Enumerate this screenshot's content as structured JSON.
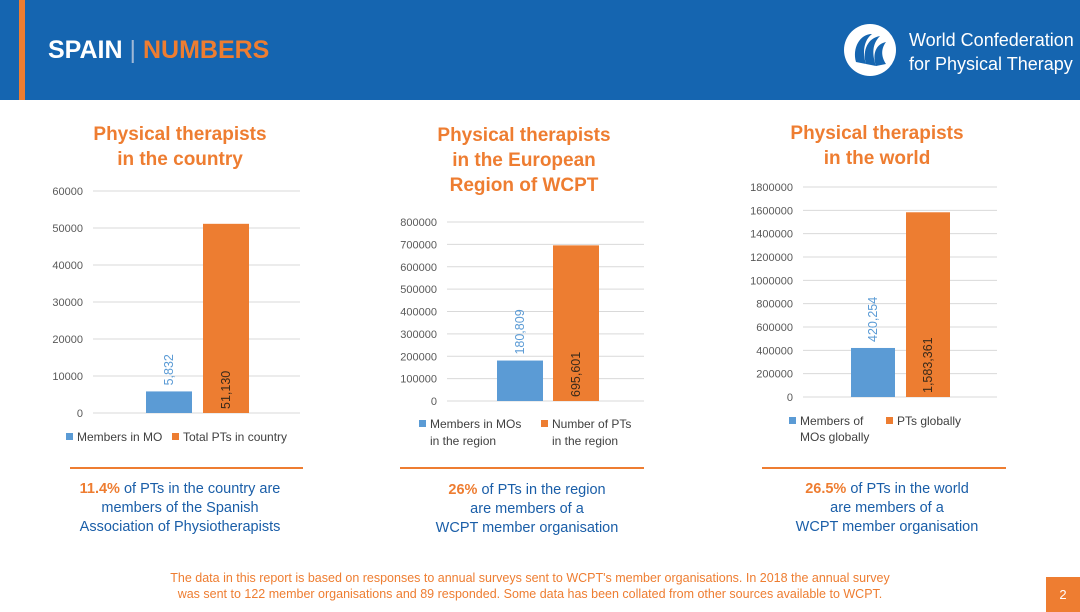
{
  "header": {
    "title_country": "SPAIN",
    "title_separator": "|",
    "title_section": "NUMBERS",
    "org_line1": "World Confederation",
    "org_line2": "for Physical Therapy",
    "logo_icon": "wcpt-logo-icon"
  },
  "charts": [
    {
      "title_line1": "Physical therapists",
      "title_line2": "in the country",
      "title_line3": "",
      "summary_pct": "11.4%",
      "summary_rest1": " of PTs in the country are",
      "summary_line2": "members of the Spanish",
      "summary_line3": "Association of Physiotherapists"
    },
    {
      "title_line1": "Physical therapists",
      "title_line2": "in the European",
      "title_line3": "Region of WCPT",
      "summary_pct": "26%",
      "summary_rest1": " of PTs in the region",
      "summary_line2": "are members of a",
      "summary_line3": "WCPT member organisation"
    },
    {
      "title_line1": "Physical therapists",
      "title_line2": "in the world",
      "title_line3": "",
      "summary_pct": "26.5%",
      "summary_rest1": " of PTs in the world",
      "summary_line2": "are members of a",
      "summary_line3": "WCPT member organisation"
    }
  ],
  "chart_data": [
    {
      "type": "bar",
      "title": "Physical therapists in the country",
      "categories": [
        "Members in MO",
        "Total PTs in country"
      ],
      "values": [
        5832,
        51130
      ],
      "data_labels": [
        "5,832",
        "51,130"
      ],
      "colors": [
        "#5b9bd5",
        "#ed7d31"
      ],
      "legend": [
        [
          "Members in MO"
        ],
        [
          "Total PTs in country"
        ]
      ],
      "ylim": [
        0,
        60000
      ],
      "yticks": [
        "0",
        "10000",
        "20000",
        "30000",
        "40000",
        "50000",
        "60000"
      ],
      "legend_position": "bottom"
    },
    {
      "type": "bar",
      "title": "Physical therapists in the European Region of WCPT",
      "categories": [
        "Members in MOs in the region",
        "Number of PTs in the region"
      ],
      "values": [
        180809,
        695601
      ],
      "data_labels": [
        "180,809",
        "695,601"
      ],
      "colors": [
        "#5b9bd5",
        "#ed7d31"
      ],
      "legend": [
        [
          "Members in MOs",
          "in the region"
        ],
        [
          "Number of PTs",
          "in the region"
        ]
      ],
      "ylim": [
        0,
        800000
      ],
      "yticks": [
        "0",
        "100000",
        "200000",
        "300000",
        "400000",
        "500000",
        "600000",
        "700000",
        "800000"
      ],
      "legend_position": "bottom"
    },
    {
      "type": "bar",
      "title": "Physical therapists in the world",
      "categories": [
        "Members of MOs globally",
        "PTs globally"
      ],
      "values": [
        420254,
        1583361
      ],
      "data_labels": [
        "420,254",
        "1,583,361"
      ],
      "colors": [
        "#5b9bd5",
        "#ed7d31"
      ],
      "legend": [
        [
          "Members of",
          "MOs globally"
        ],
        [
          "PTs globally"
        ]
      ],
      "ylim": [
        0,
        1800000
      ],
      "yticks": [
        "0",
        "200000",
        "400000",
        "600000",
        "800000",
        "1000000",
        "1200000",
        "1400000",
        "1600000",
        "1800000"
      ],
      "legend_position": "bottom"
    }
  ],
  "footer": {
    "line1": "The data in this report is based on responses to annual surveys sent to WCPT's member organisations. In 2018 the annual survey",
    "line2": "was sent to 122 member organisations and 89 responded. Some data has been collated from other sources available to WCPT."
  },
  "page_number": "2"
}
